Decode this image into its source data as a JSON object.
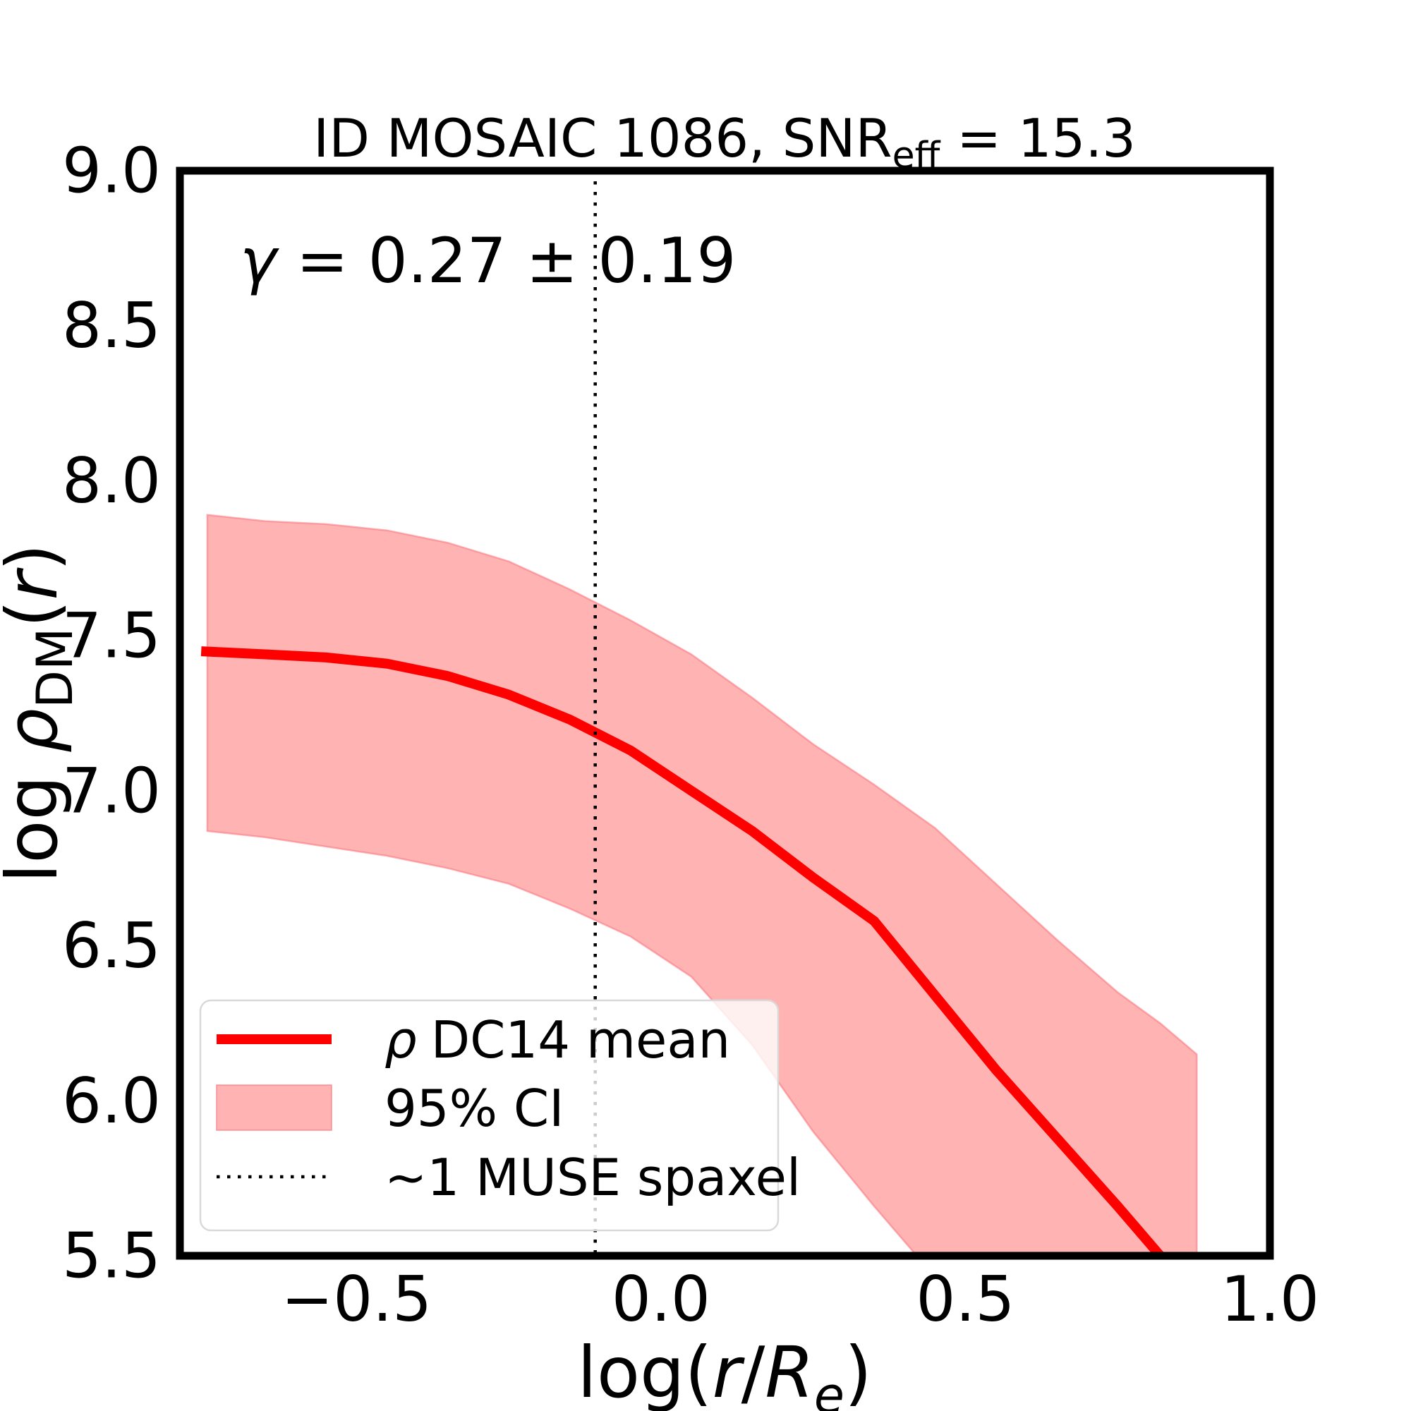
{
  "figure": {
    "title": {
      "pre": "ID MOSAIC 1086, SNR",
      "sub": "eff",
      "post": " = 15.3"
    },
    "annotation": {
      "italic": "γ",
      "text": " = 0.27 ± 0.19"
    },
    "xlabel": {
      "pre": "log(",
      "i1": "r",
      "mid": "/",
      "i2": "R",
      "sub": "e",
      "post": ")"
    },
    "ylabel": {
      "pre": "log ",
      "i1": "ρ",
      "sub": "DM",
      "mid": "(",
      "i2": "r",
      "post": ")"
    }
  },
  "legend": {
    "items": [
      {
        "type": "line",
        "label_italic": "ρ",
        "label": "DC14 mean"
      },
      {
        "type": "patch",
        "label": "95% CI"
      },
      {
        "type": "dotted",
        "label": "~1 MUSE spaxel"
      }
    ]
  },
  "chart_data": {
    "type": "line",
    "title": "ID MOSAIC 1086, SNR_eff = 15.3",
    "xlabel": "log(r/R_e)",
    "ylabel": "log rho_DM(r)",
    "xlim": [
      -0.79,
      1.0
    ],
    "ylim": [
      5.5,
      9.0
    ],
    "x_ticks": [
      -0.5,
      0.0,
      0.5,
      1.0
    ],
    "y_ticks": [
      9.0,
      8.5,
      8.0,
      7.5,
      7.0,
      6.5,
      6.0,
      5.5
    ],
    "grid": false,
    "legend_position": "lower left",
    "legend": [
      "ρ DC14 mean",
      "95% CI",
      "~1 MUSE spaxel"
    ],
    "annotation": "γ = 0.27 ± 0.19",
    "vline_x": -0.108,
    "series": [
      {
        "name": "rho DC14 mean",
        "x": [
          -0.755,
          -0.65,
          -0.55,
          -0.45,
          -0.35,
          -0.25,
          -0.15,
          -0.05,
          0.05,
          0.15,
          0.25,
          0.35,
          0.45,
          0.55,
          0.65,
          0.75,
          0.82,
          0.86
        ],
        "y": [
          7.45,
          7.44,
          7.43,
          7.41,
          7.37,
          7.31,
          7.23,
          7.13,
          7.0,
          6.87,
          6.72,
          6.58,
          6.34,
          6.1,
          5.88,
          5.66,
          5.5,
          5.41
        ]
      },
      {
        "name": "95% CI upper",
        "x": [
          -0.745,
          -0.65,
          -0.55,
          -0.45,
          -0.35,
          -0.25,
          -0.15,
          -0.05,
          0.05,
          0.15,
          0.25,
          0.35,
          0.45,
          0.55,
          0.65,
          0.75,
          0.82,
          0.88
        ],
        "y": [
          7.89,
          7.87,
          7.86,
          7.84,
          7.8,
          7.74,
          7.65,
          7.55,
          7.44,
          7.3,
          7.15,
          7.02,
          6.88,
          6.7,
          6.52,
          6.35,
          6.25,
          6.15
        ]
      },
      {
        "name": "95% CI lower",
        "x": [
          -0.745,
          -0.65,
          -0.55,
          -0.45,
          -0.35,
          -0.25,
          -0.15,
          -0.05,
          0.05,
          0.15,
          0.25,
          0.35,
          0.42
        ],
        "y": [
          6.87,
          6.85,
          6.82,
          6.79,
          6.75,
          6.7,
          6.62,
          6.53,
          6.4,
          6.18,
          5.9,
          5.66,
          5.5
        ]
      }
    ],
    "band_right_end_x": 0.88,
    "colors": {
      "mean": "#ff0000",
      "band": "#ffb3b3",
      "band_edge": "rgba(249,105,115,0.5)",
      "vline": "#000000",
      "legend_border": "#d9d9d9"
    }
  }
}
